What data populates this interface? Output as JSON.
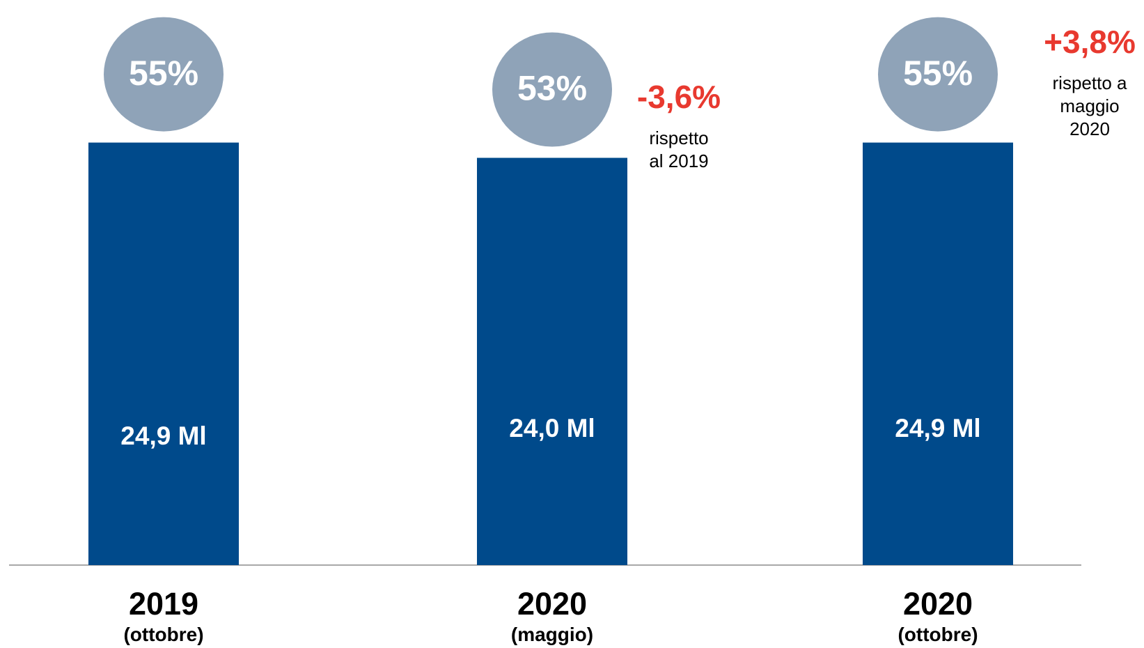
{
  "colors": {
    "bar": "#004a8b",
    "bubble": "#8fa3b8",
    "delta": "#e8392f",
    "axis": "#8c8c8c"
  },
  "chart_data": {
    "type": "bar",
    "categories": [
      "2019 (ottobre)",
      "2020 (maggio)",
      "2020 (ottobre)"
    ],
    "values": [
      24.9,
      24.0,
      24.9
    ],
    "ylim": [
      0,
      25.5
    ],
    "grid": false,
    "bars": [
      {
        "year": "2019",
        "period": "(ottobre)",
        "value": 24.9,
        "value_label": "24,9 Ml",
        "share_label": "55%",
        "delta": null
      },
      {
        "year": "2020",
        "period": "(maggio)",
        "value": 24.0,
        "value_label": "24,0 Ml",
        "share_label": "53%",
        "delta": {
          "value": "-3,6%",
          "note": [
            "rispetto",
            "al 2019"
          ]
        }
      },
      {
        "year": "2020",
        "period": "(ottobre)",
        "value": 24.9,
        "value_label": "24,9 Ml",
        "share_label": "55%",
        "delta": {
          "value": "+3,8%",
          "note": [
            "rispetto a",
            "maggio",
            "2020"
          ]
        }
      }
    ]
  }
}
